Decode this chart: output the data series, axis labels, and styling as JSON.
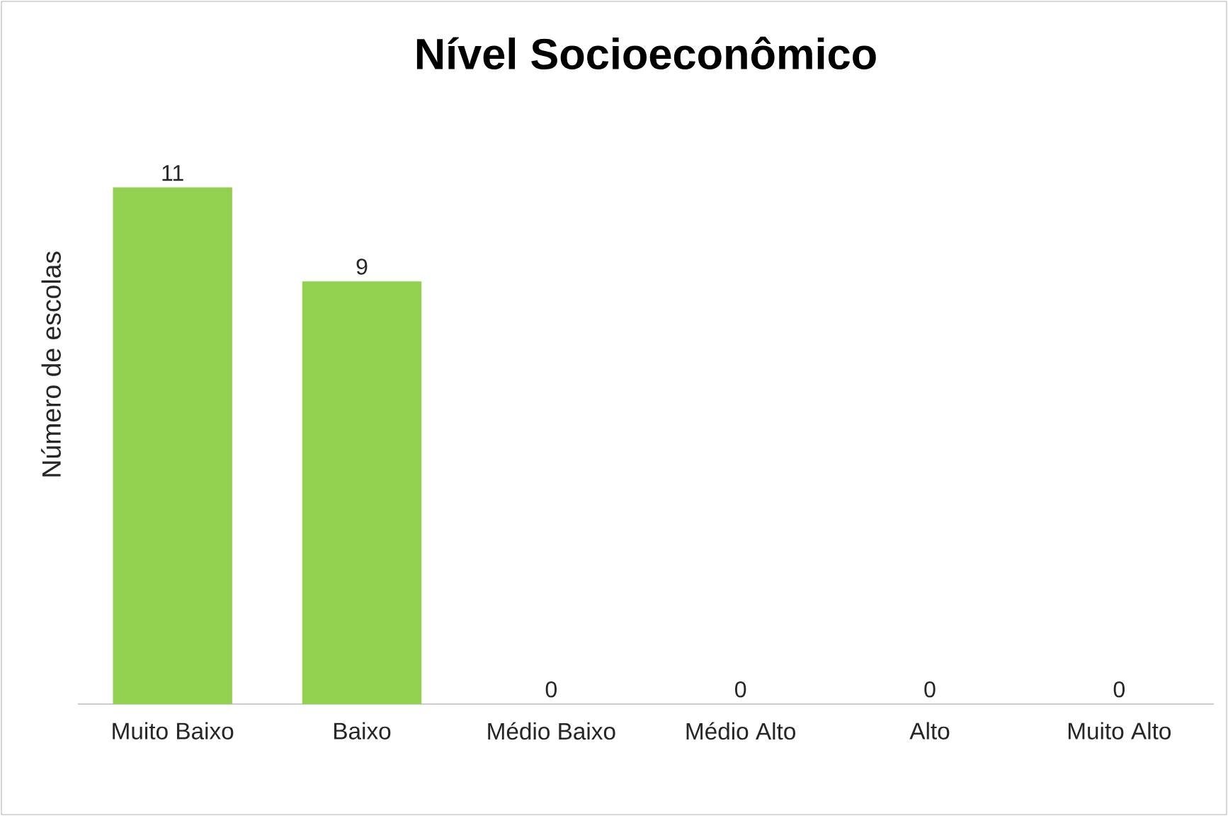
{
  "chart_data": {
    "type": "bar",
    "title": "Nível Socioeconômico",
    "ylabel": "Número de escolas",
    "categories": [
      "Muito Baixo",
      "Baixo",
      "Médio Baixo",
      "Médio Alto",
      "Alto",
      "Muito Alto"
    ],
    "values": [
      11,
      9,
      0,
      0,
      0,
      0
    ],
    "color": "#92d050",
    "data_labels": true
  }
}
